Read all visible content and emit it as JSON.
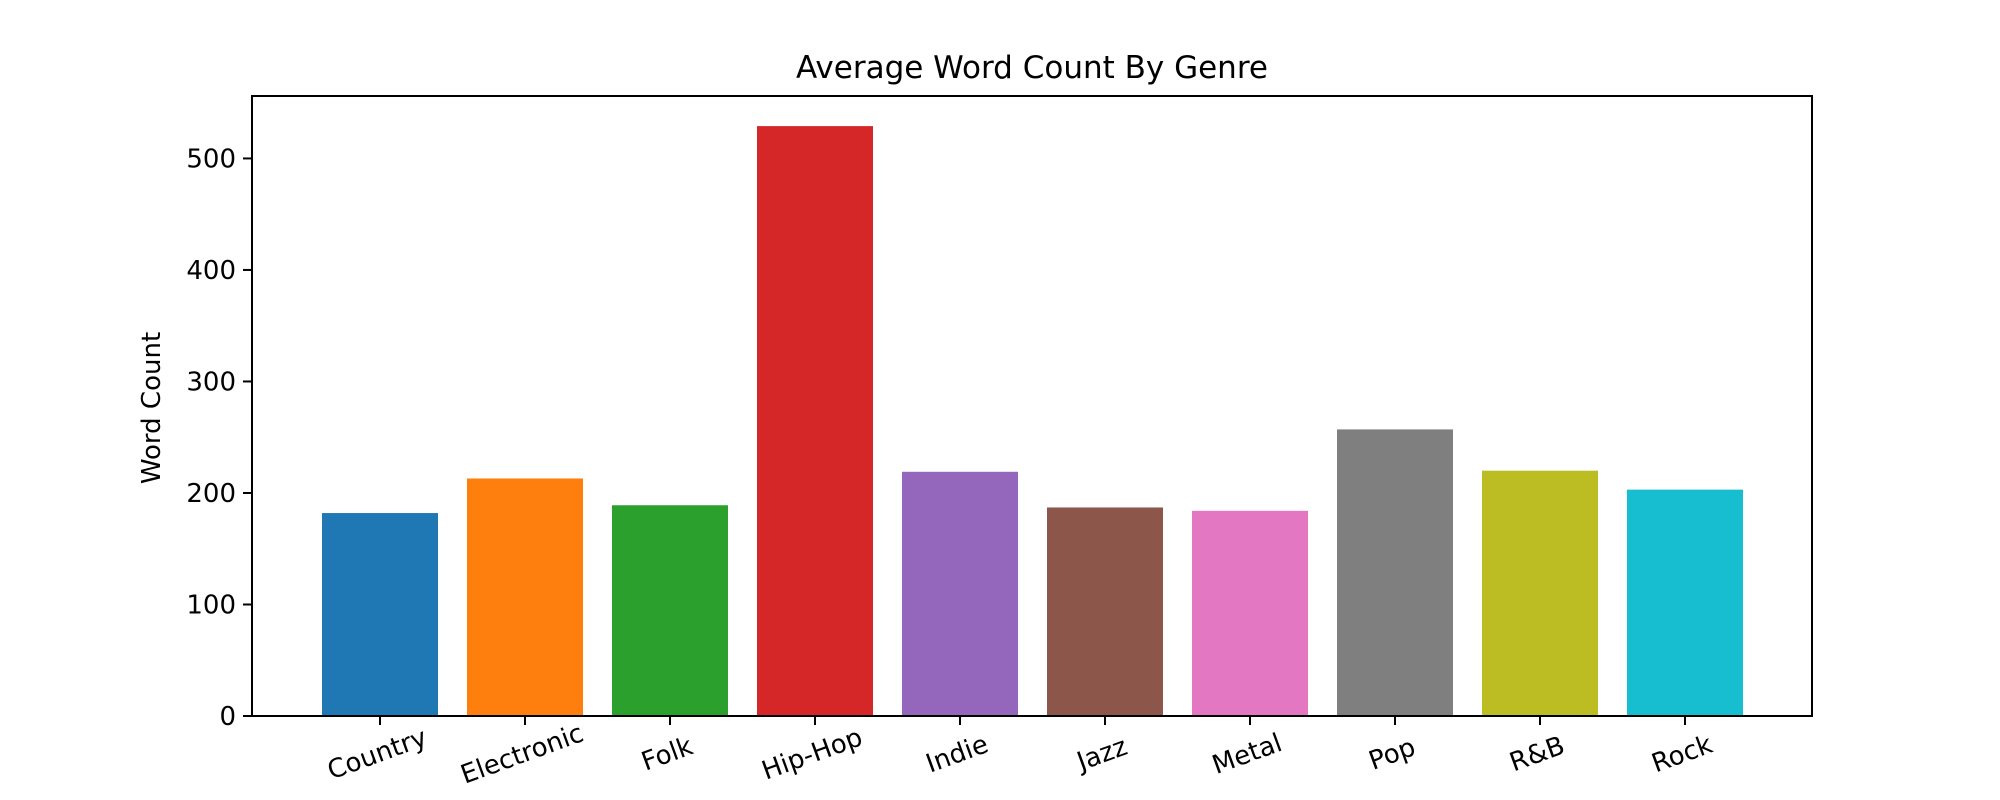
{
  "chart_data": {
    "type": "bar",
    "title": "Average Word Count By Genre",
    "xlabel": "",
    "ylabel": "Word Count",
    "categories": [
      "Country",
      "Electronic",
      "Folk",
      "Hip-Hop",
      "Indie",
      "Jazz",
      "Metal",
      "Pop",
      "R&B",
      "Rock"
    ],
    "values": [
      182,
      213,
      189,
      529,
      219,
      187,
      184,
      257,
      220,
      203
    ],
    "colors": [
      "#1f77b4",
      "#ff7f0e",
      "#2ca02c",
      "#d62728",
      "#9467bd",
      "#8c564b",
      "#e377c2",
      "#7f7f7f",
      "#bcbd22",
      "#17becf"
    ],
    "ylim": [
      0,
      556
    ],
    "yticks": [
      0,
      100,
      200,
      300,
      400,
      500
    ],
    "ytick_labels": [
      "0",
      "100",
      "200",
      "300",
      "400",
      "500"
    ],
    "xtick_rotation_deg": -20,
    "grid": false,
    "legend": false
  }
}
